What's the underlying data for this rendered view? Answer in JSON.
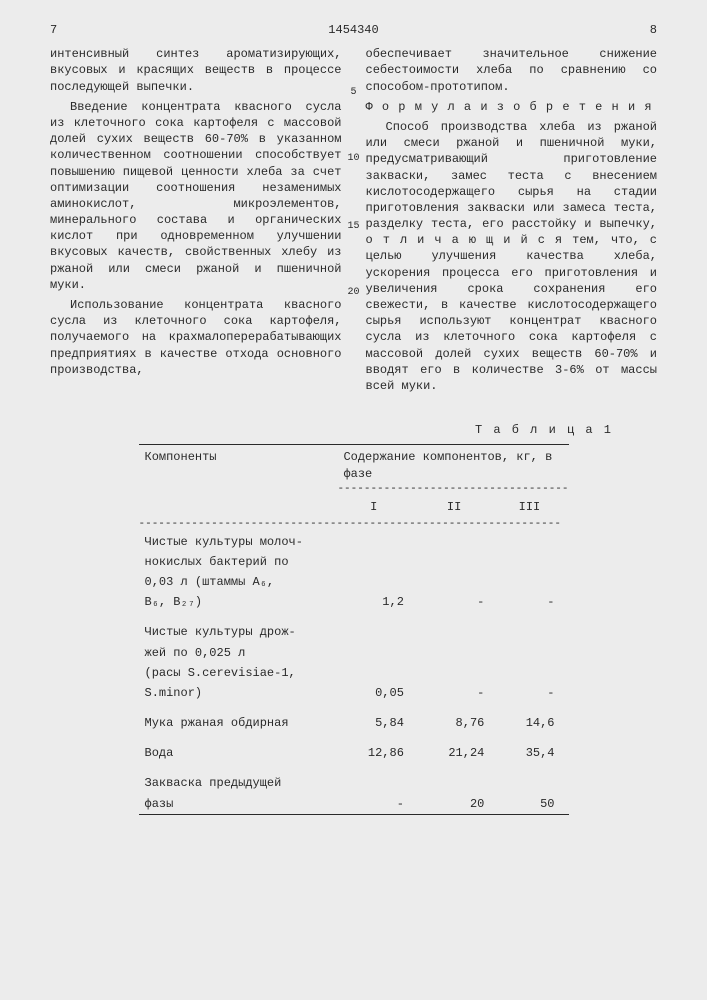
{
  "doc_number": "1454340",
  "page_left": "7",
  "page_right": "8",
  "margin_numbers": [
    "5",
    "10",
    "15",
    "20"
  ],
  "left_column": {
    "p1": "интенсивный синтез ароматизирующих, вкусовых и красящих веществ в про­цес­се последующей выпечки.",
    "p2": "Введение концентрата квасного сус­ла из клеточного сока картофеля с массовой долей сухих веществ 60-70% в указанном количественном соотноше­нии способствует повышению пищевой ценности хлеба за счет оптимизации соотношения незаменимых аминокис­лот, микроэлементов, минерального состава и органических кислот при одновременном улучшении вкусовых качеств, свойственных хлебу из ржа­ной или смеси ржаной и пшеничной муки.",
    "p3": "Использование концентрата квасно­го сусла из клеточного сока карто­феля, получаемого на крахмалопере­рабатывающих предприятиях в качест­ве отхода основного производства,"
  },
  "right_column": {
    "p1": "обеспечивает значительное снижение себестоимости хлеба по сравнению со способом-прототипом.",
    "formula_heading": "Ф о р м у л а   и з о б р е т е н и я",
    "p2": "Способ производства хлеба из ржа­ной или смеси ржаной и пшеничной му­ки, предусматривающий приготовление закваски, замес теста с внесением кислотосодержащего сырья на стадии приготовления закваски или замеса теста, разделку теста, его расстойку и выпечку, о т л и ч а ю щ и й с я тем, что, с целью улучшения качества хлеба, ускорения процесса его приго­товления и увеличения срока сохране­ния его свежести, в качестве кислото­содержащего сырья используют концент­рат квасного сусла из клеточного сока картофеля с массовой долей сухих ве­ществ 60-70% и вводят его в количест­ве 3-6% от массы всей муки."
  },
  "table": {
    "title": "Т а б л и ц а  1",
    "head_components": "Компоненты",
    "head_content": "Содержание компонентов, кг, в фазе",
    "phase_labels": [
      "I",
      "II",
      "III"
    ],
    "rows": [
      {
        "label_lines": [
          "Чистые культуры молоч-",
          "нокислых бактерий по",
          "0,03 л (штаммы A₆,",
          "B₆, B₂₇)"
        ],
        "vals": [
          "1,2",
          "-",
          "-"
        ]
      },
      {
        "label_lines": [
          "Чистые культуры дрож-",
          "жей по 0,025 л",
          "(расы S.cerevisiae-1,",
          "S.minor)"
        ],
        "vals": [
          "0,05",
          "-",
          "-"
        ]
      },
      {
        "label_lines": [
          "Мука ржаная обдирная"
        ],
        "vals": [
          "5,84",
          "8,76",
          "14,6"
        ]
      },
      {
        "label_lines": [
          "Вода"
        ],
        "vals": [
          "12,86",
          "21,24",
          "35,4"
        ]
      },
      {
        "label_lines": [
          "Закваска предыдущей",
          "фазы"
        ],
        "vals": [
          "-",
          "20",
          "50"
        ]
      }
    ]
  }
}
